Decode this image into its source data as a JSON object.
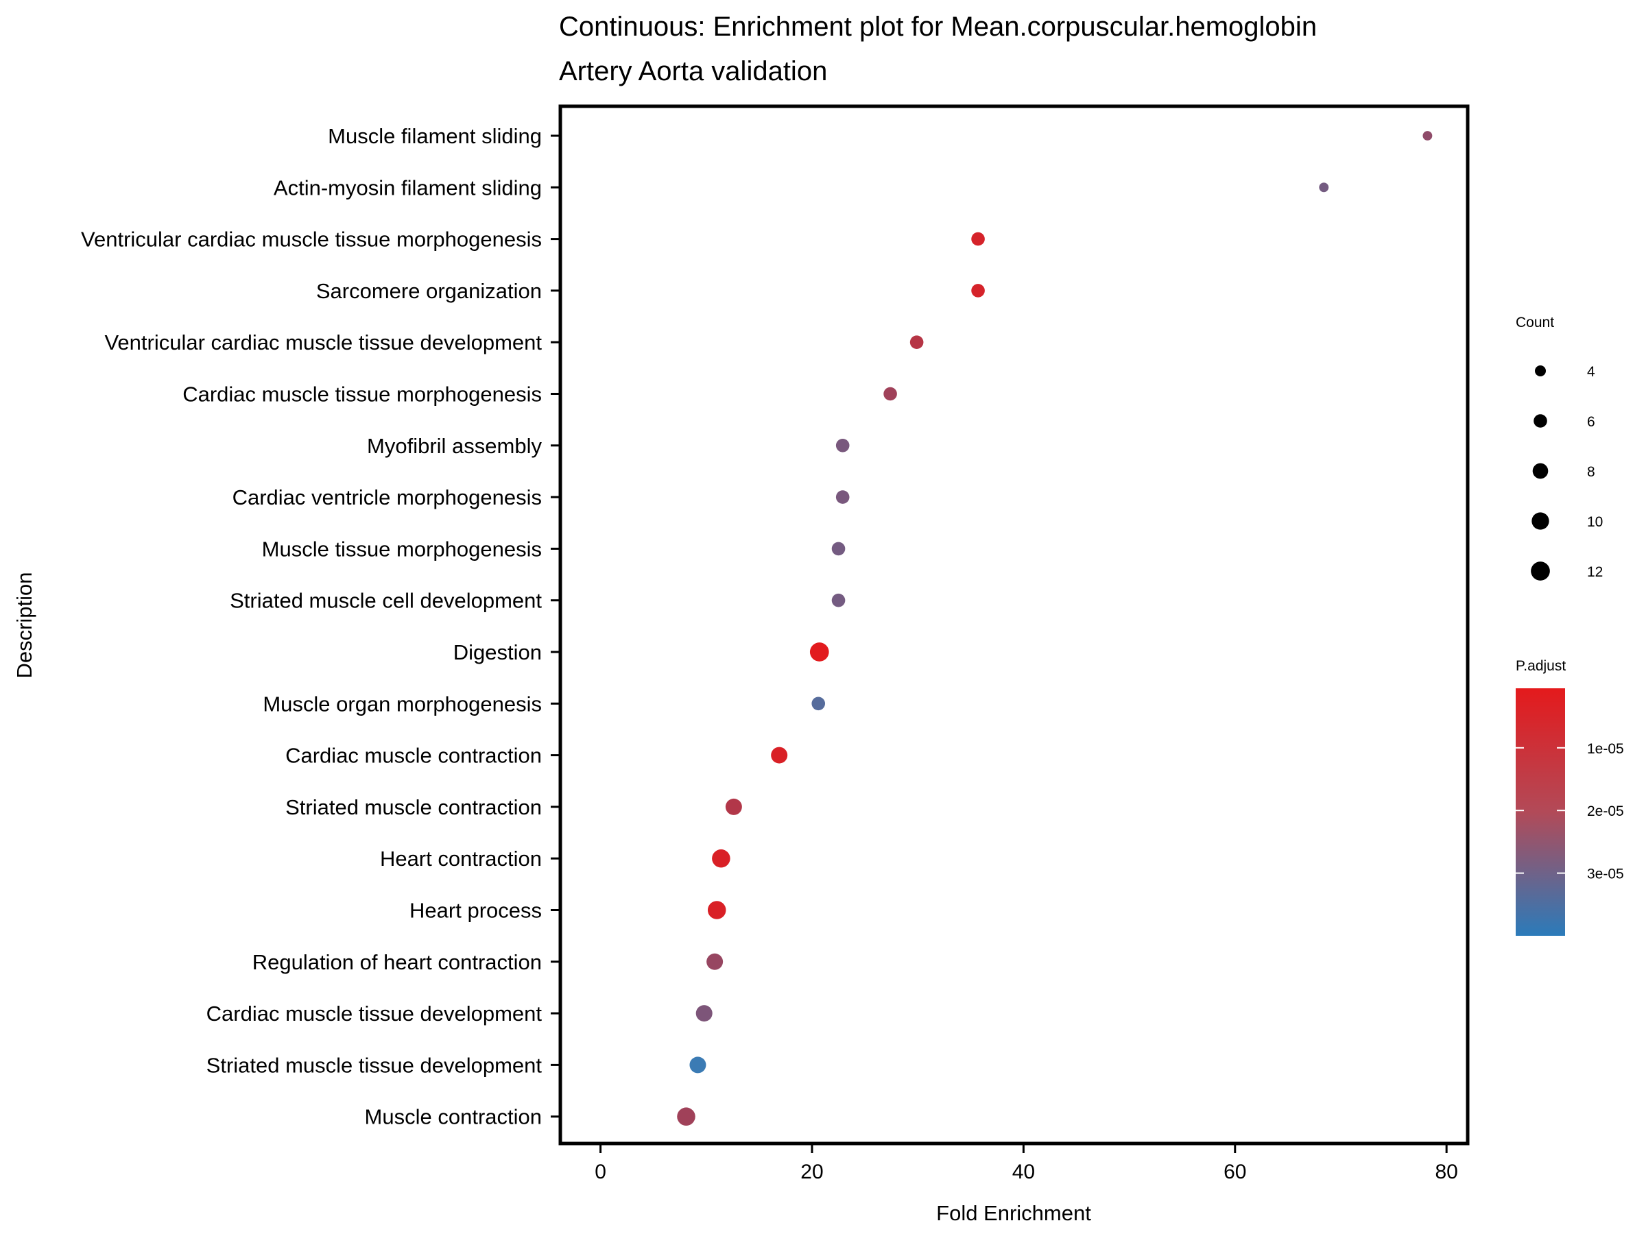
{
  "chart_data": {
    "type": "scatter",
    "title": "Continuous: Enrichment plot for Mean.corpuscular.hemoglobin",
    "subtitle": "Artery Aorta validation",
    "xlabel": "Fold Enrichment",
    "ylabel": "Description",
    "xlim": [
      -3.8,
      82
    ],
    "xticks": [
      0,
      20,
      40,
      60,
      80
    ],
    "grid": false,
    "color_scale": {
      "low_color": "#e41a1c",
      "high_color": "#377eb8",
      "domain": [
        5e-07,
        4e-05
      ]
    },
    "points": [
      {
        "label": "Muscle filament sliding",
        "x": 78.2,
        "count": 3,
        "p_adjust": 2e-05
      },
      {
        "label": "Actin-myosin filament sliding",
        "x": 68.4,
        "count": 3,
        "p_adjust": 2.6e-05
      },
      {
        "label": "Ventricular cardiac muscle tissue morphogenesis",
        "x": 35.7,
        "count": 6,
        "p_adjust": 4e-06
      },
      {
        "label": "Sarcomere organization",
        "x": 35.7,
        "count": 6,
        "p_adjust": 4e-06
      },
      {
        "label": "Ventricular cardiac muscle tissue development",
        "x": 29.9,
        "count": 6,
        "p_adjust": 1.1e-05
      },
      {
        "label": "Cardiac muscle tissue morphogenesis",
        "x": 27.4,
        "count": 6,
        "p_adjust": 1.6e-05
      },
      {
        "label": "Myofibril assembly",
        "x": 22.9,
        "count": 6,
        "p_adjust": 2.5e-05
      },
      {
        "label": "Cardiac ventricle morphogenesis",
        "x": 22.9,
        "count": 6,
        "p_adjust": 2.5e-05
      },
      {
        "label": "Muscle tissue morphogenesis",
        "x": 22.5,
        "count": 6,
        "p_adjust": 2.6e-05
      },
      {
        "label": "Striated muscle cell development",
        "x": 22.5,
        "count": 6,
        "p_adjust": 2.6e-05
      },
      {
        "label": "Digestion",
        "x": 20.7,
        "count": 12,
        "p_adjust": 1e-06
      },
      {
        "label": "Muscle organ morphogenesis",
        "x": 20.6,
        "count": 6,
        "p_adjust": 3.3e-05
      },
      {
        "label": "Cardiac muscle contraction",
        "x": 16.9,
        "count": 9,
        "p_adjust": 3e-06
      },
      {
        "label": "Striated muscle contraction",
        "x": 12.6,
        "count": 9,
        "p_adjust": 1.2e-05
      },
      {
        "label": "Heart contraction",
        "x": 11.4,
        "count": 11,
        "p_adjust": 3e-06
      },
      {
        "label": "Heart process",
        "x": 11.0,
        "count": 11,
        "p_adjust": 3e-06
      },
      {
        "label": "Regulation of heart contraction",
        "x": 10.8,
        "count": 9,
        "p_adjust": 1.8e-05
      },
      {
        "label": "Cardiac muscle tissue development",
        "x": 9.8,
        "count": 9,
        "p_adjust": 2.4e-05
      },
      {
        "label": "Striated muscle tissue development",
        "x": 9.2,
        "count": 9,
        "p_adjust": 3.9e-05
      },
      {
        "label": "Muscle contraction",
        "x": 8.1,
        "count": 11,
        "p_adjust": 1.6e-05
      }
    ]
  },
  "legend": {
    "size_title": "Count",
    "size_entries": [
      {
        "label": "4",
        "value": 4
      },
      {
        "label": "6",
        "value": 6
      },
      {
        "label": "8",
        "value": 8
      },
      {
        "label": "10",
        "value": 10
      },
      {
        "label": "12",
        "value": 12
      }
    ],
    "color_title": "P.adjust",
    "color_ticks": [
      {
        "label": "1e-05",
        "value": 1e-05
      },
      {
        "label": "2e-05",
        "value": 2e-05
      },
      {
        "label": "3e-05",
        "value": 3e-05
      }
    ]
  }
}
